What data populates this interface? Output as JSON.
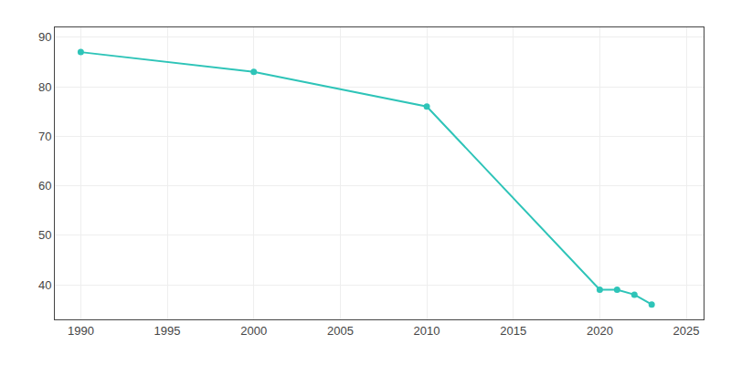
{
  "chart_data": {
    "type": "line",
    "x": [
      1990,
      2000,
      2010,
      2020,
      2021,
      2022,
      2023
    ],
    "values": [
      87,
      83,
      76,
      39,
      39,
      38,
      36
    ],
    "color": "#2ec4b8",
    "marker": "circle",
    "xlim": [
      1988.5,
      2026
    ],
    "ylim": [
      33,
      92
    ],
    "xticks": [
      1990,
      1995,
      2000,
      2005,
      2010,
      2015,
      2020,
      2025
    ],
    "yticks": [
      40,
      50,
      60,
      70,
      80,
      90
    ],
    "grid": true
  }
}
